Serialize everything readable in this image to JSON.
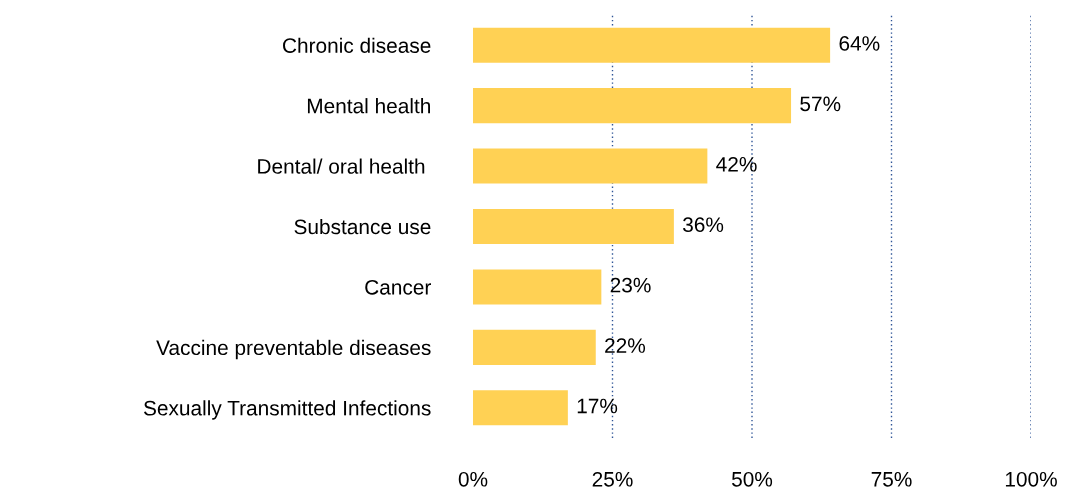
{
  "chart_data": {
    "type": "bar",
    "orientation": "horizontal",
    "categories": [
      "Chronic disease",
      "Mental health",
      "Dental/ oral health ",
      "Substance use",
      "Cancer",
      "Vaccine preventable diseases",
      "Sexually Transmitted Infections"
    ],
    "values": [
      64,
      57,
      42,
      36,
      23,
      22,
      17
    ],
    "value_labels": [
      "64%",
      "57%",
      "42%",
      "36%",
      "23%",
      "22%",
      "17%"
    ],
    "color": "#ffd154",
    "xlim": [
      0,
      100
    ],
    "xticks": [
      {
        "value": 0,
        "label": "0%"
      },
      {
        "value": 25,
        "label": "25%"
      },
      {
        "value": 50,
        "label": "50%"
      },
      {
        "value": 75,
        "label": "75%"
      },
      {
        "value": 100,
        "label": "100%"
      }
    ],
    "grid": "x"
  }
}
